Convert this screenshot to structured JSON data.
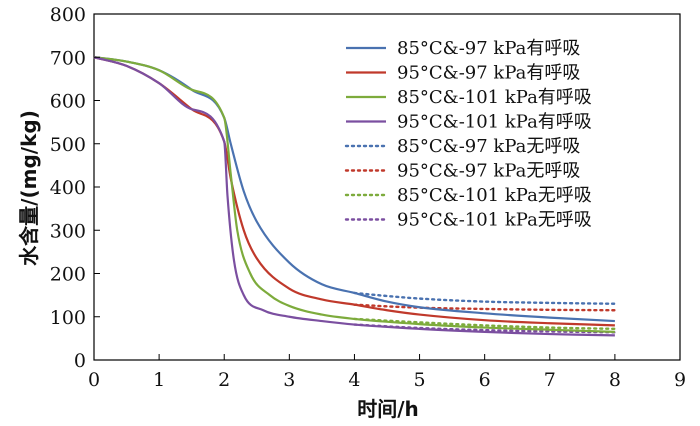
{
  "chart_data": {
    "type": "line",
    "xlabel": "时间/h",
    "ylabel": "水含量/(mg/kg)",
    "xlim": [
      0,
      9
    ],
    "ylim": [
      0,
      800
    ],
    "xticks": [
      "0",
      "1",
      "2",
      "3",
      "4",
      "5",
      "6",
      "7",
      "8",
      "9"
    ],
    "yticks": [
      "0",
      "100",
      "200",
      "300",
      "400",
      "500",
      "600",
      "700",
      "800"
    ],
    "grid": false,
    "legend_position": "top-right",
    "series": [
      {
        "name": "85°C&-97 kPa有呼吸",
        "color": "#4a72b0",
        "style": "solid",
        "x": [
          0,
          0.5,
          1,
          1.5,
          2,
          2.1,
          2.3,
          2.5,
          3,
          3.5,
          4,
          4.5,
          5,
          6,
          7,
          8
        ],
        "y": [
          700,
          690,
          670,
          625,
          560,
          500,
          390,
          320,
          225,
          175,
          155,
          135,
          122,
          108,
          98,
          90
        ]
      },
      {
        "name": "95°C&-97 kPa有呼吸",
        "color": "#c0392b",
        "style": "solid",
        "x": [
          0,
          0.5,
          1,
          1.5,
          2,
          2.1,
          2.3,
          2.5,
          3,
          3.5,
          4,
          4.5,
          5,
          6,
          7,
          8
        ],
        "y": [
          700,
          680,
          640,
          580,
          505,
          420,
          300,
          235,
          165,
          140,
          128,
          115,
          105,
          92,
          85,
          80
        ]
      },
      {
        "name": "85°C&-101 kPa有呼吸",
        "color": "#7dab3c",
        "style": "solid",
        "x": [
          0,
          0.5,
          1,
          1.5,
          2,
          2.1,
          2.2,
          2.4,
          2.7,
          3,
          3.5,
          4,
          5,
          6,
          7,
          8
        ],
        "y": [
          700,
          690,
          670,
          625,
          560,
          430,
          300,
          200,
          150,
          125,
          105,
          95,
          83,
          75,
          70,
          65
        ]
      },
      {
        "name": "95°C&-101 kPa有呼吸",
        "color": "#7b4fa0",
        "style": "solid",
        "x": [
          0,
          0.5,
          1,
          1.5,
          2,
          2.05,
          2.15,
          2.3,
          2.6,
          3,
          3.5,
          4,
          5,
          6,
          7,
          8
        ],
        "y": [
          700,
          680,
          640,
          580,
          505,
          380,
          230,
          150,
          115,
          100,
          90,
          82,
          72,
          65,
          60,
          57
        ]
      },
      {
        "name": "85°C&-97 kPa无呼吸",
        "color": "#4a72b0",
        "style": "dotted",
        "x": [
          4,
          4.5,
          5,
          6,
          7,
          8
        ],
        "y": [
          155,
          148,
          142,
          135,
          132,
          130
        ]
      },
      {
        "name": "95°C&-97 kPa无呼吸",
        "color": "#c0392b",
        "style": "dotted",
        "x": [
          4,
          4.5,
          5,
          6,
          7,
          8
        ],
        "y": [
          128,
          124,
          121,
          118,
          116,
          115
        ]
      },
      {
        "name": "85°C&-101 kPa无呼吸",
        "color": "#7dab3c",
        "style": "dotted",
        "x": [
          4,
          5,
          6,
          7,
          8
        ],
        "y": [
          95,
          87,
          80,
          75,
          72
        ]
      },
      {
        "name": "95°C&-101 kPa无呼吸",
        "color": "#7b4fa0",
        "style": "dotted",
        "x": [
          4,
          5,
          6,
          7,
          8
        ],
        "y": [
          82,
          74,
          69,
          66,
          64
        ]
      }
    ]
  }
}
